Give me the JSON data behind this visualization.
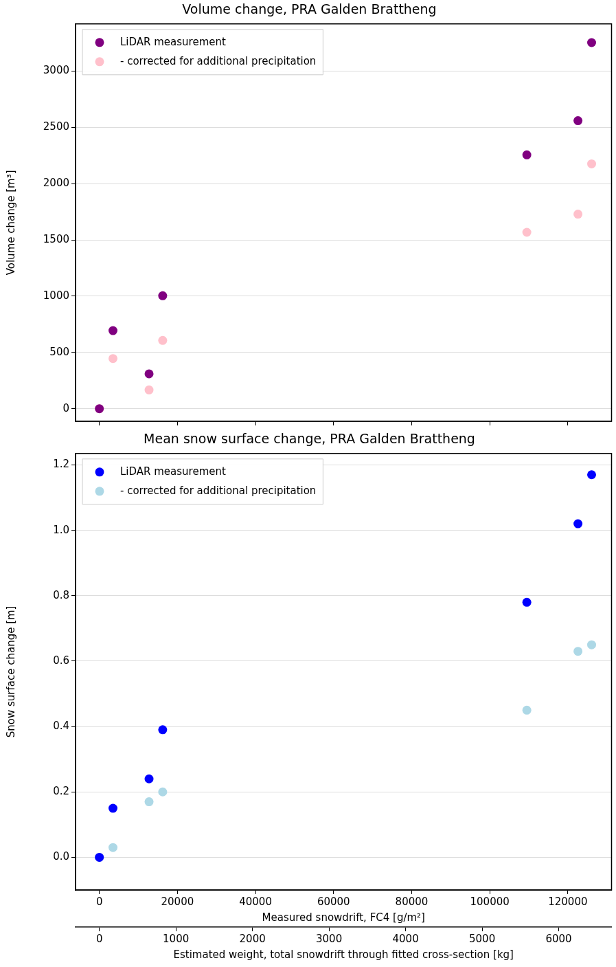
{
  "chart_data": [
    {
      "type": "scatter",
      "title": "Volume change, PRA Galden Brattheng",
      "ylabel": "Volume change [m³]",
      "x": [
        0,
        3490,
        12730,
        16220,
        109500,
        122600,
        126100
      ],
      "series": [
        {
          "name": "LiDAR measurement",
          "color": "#800080",
          "values": [
            0,
            694,
            310,
            1004,
            2256,
            2560,
            3254
          ]
        },
        {
          "name": "- corrected for additional precipitation",
          "color": "#ffc0cb",
          "values": [
            0,
            446,
            167,
            607,
            1568,
            1729,
            2176
          ]
        }
      ],
      "xlim": [
        -6100,
        131200
      ],
      "xticks": [
        0,
        20000,
        40000,
        60000,
        80000,
        100000,
        120000
      ],
      "ylim": [
        -112,
        3420
      ],
      "yticks": [
        0,
        500,
        1000,
        1500,
        2000,
        2500,
        3000
      ],
      "tick_labels": "y",
      "grid": "y",
      "legend": "top left",
      "marker": "circle"
    },
    {
      "type": "scatter",
      "title": "Mean snow surface change, PRA Galden Brattheng",
      "xlabel": "Measured snowdrift, FC4 [g/m²]",
      "ylabel": "Snow surface change [m]",
      "x2label": "Estimated weight, total snowdrift through fitted cross-section [kg]",
      "x": [
        0,
        3490,
        12730,
        16220,
        109500,
        122600,
        126100
      ],
      "series": [
        {
          "name": "LiDAR measurement",
          "color": "#0000ff",
          "values": [
            0,
            0.15,
            0.24,
            0.39,
            0.78,
            1.02,
            1.17
          ]
        },
        {
          "name": "- corrected for additional precipitation",
          "color": "#add8e6",
          "values": [
            0,
            0.03,
            0.17,
            0.2,
            0.45,
            0.63,
            0.65
          ]
        }
      ],
      "xlim": [
        -6100,
        131200
      ],
      "xticks": [
        0,
        20000,
        40000,
        60000,
        80000,
        100000,
        120000
      ],
      "ylim": [
        -0.1,
        1.235
      ],
      "yticks": [
        {
          "value": 0,
          "label": "0.0"
        },
        0.2,
        0.4,
        0.6,
        0.8,
        {
          "value": 1,
          "label": "1.0"
        },
        1.2
      ],
      "x2lim": [
        -311,
        6690
      ],
      "x2ticks": [
        0,
        1000,
        2000,
        3000,
        4000,
        5000,
        6000
      ],
      "grid": "y",
      "legend": "top left",
      "marker": "circle"
    }
  ]
}
